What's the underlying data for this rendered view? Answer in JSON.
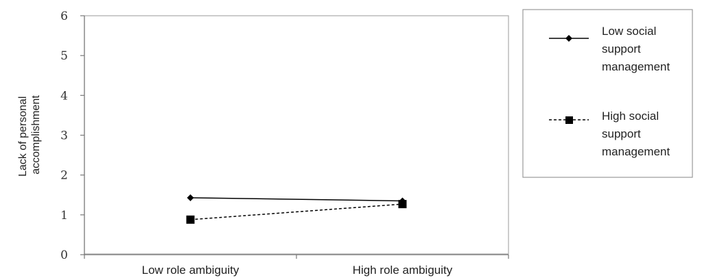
{
  "chart_data": {
    "type": "line",
    "categories": [
      "Low role ambiguity",
      "High role ambiguity"
    ],
    "ylabel_lines": [
      "Lack of personal",
      "accomplishment"
    ],
    "ylim": [
      0,
      6
    ],
    "yticks": [
      "0",
      "1",
      "2",
      "3",
      "4",
      "5",
      "6"
    ],
    "grid": false,
    "legend_position": "right",
    "series": [
      {
        "name_lines": [
          "Low social",
          "support",
          "management"
        ],
        "values": [
          1.43,
          1.35
        ],
        "marker": "diamond",
        "line_style": "solid",
        "color": "#000000"
      },
      {
        "name_lines": [
          "High social",
          "support",
          "management"
        ],
        "values": [
          0.88,
          1.27
        ],
        "marker": "square",
        "line_style": "dashed",
        "color": "#000000"
      }
    ]
  }
}
